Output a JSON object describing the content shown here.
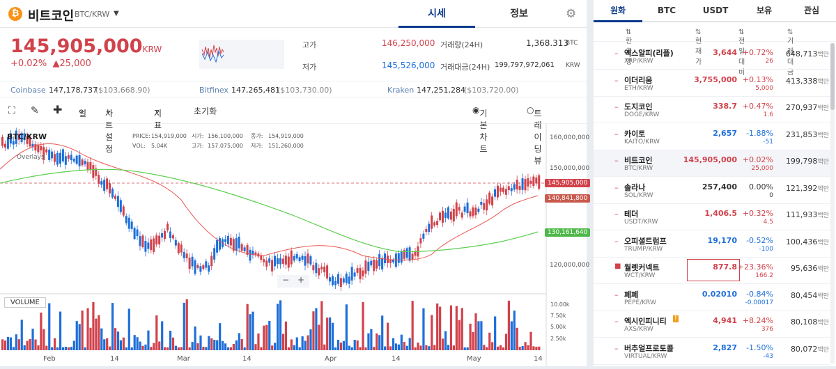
{
  "header": {
    "coin_name": "비트코인",
    "coin_symbol": "BTC/KRW",
    "tabs": [
      "시세",
      "정보"
    ]
  },
  "price": {
    "value": "145,905,000",
    "unit": "KRW",
    "change_pct": "+0.02%",
    "change_amt": "▲25,000"
  },
  "stats": {
    "high_label": "고가",
    "high": "146,250,000",
    "low_label": "저가",
    "low": "145,526,000",
    "vol_label": "거래량(24H)",
    "vol": "1,368.313",
    "vol_unit": "BTC",
    "amt_label": "거래대금(24H)",
    "amt": "199,797,972,061",
    "amt_unit": "KRW"
  },
  "exchanges": [
    {
      "name": "Coinbase",
      "price": "147,178,737",
      "usd": "($103,668.90)"
    },
    {
      "name": "Bitfinex",
      "price": "147,265,481",
      "usd": "($103,730.00)"
    },
    {
      "name": "Kraken",
      "price": "147,251,284",
      "usd": "($103,720.00)"
    }
  ],
  "toolbar": {
    "period": "일",
    "chart_settings": "차트설정",
    "indicator": "지표",
    "reset": "초기화",
    "basic_chart": "기본차트",
    "tradingview": "트레이딩뷰"
  },
  "chart": {
    "pair": "BTC/KRW",
    "overlays": "Overlays",
    "info": {
      "price_l": "PRICE:",
      "price": "154,919,000",
      "vol_l": "VOL:",
      "vol": "5.04K",
      "open_l": "시가:",
      "open": "156,100,000",
      "high_l": "고가:",
      "high": "157,075,000",
      "close_l": "종가:",
      "close": "154,919,000",
      "low_l": "저가:",
      "low": "151,260,000"
    },
    "y_ticks": [
      "160,000,000",
      "150,000,000",
      "120,000,000"
    ],
    "x_ticks": [
      "Feb",
      "14",
      "Mar",
      "14",
      "Apr",
      "14",
      "May",
      "14"
    ],
    "price_tags": [
      "145,905,000",
      "140,841,800",
      "130,161,640"
    ],
    "volume_label": "VOLUME",
    "vol_ticks": [
      "10.00k",
      "7.50k",
      "5.00k",
      "2.50k"
    ]
  },
  "chart_data": {
    "type": "candlestick",
    "ma_short_color": "#e8564f",
    "ma_long_color": "#5ccf4f",
    "up_color": "#d1424b",
    "down_color": "#1e6fd9"
  },
  "market": {
    "tabs": [
      "원화",
      "BTC",
      "USDT",
      "보유",
      "관심"
    ],
    "columns": [
      "한글명",
      "현재가",
      "전일대비",
      "거래대금"
    ],
    "rows": [
      {
        "name": "엑스알피(리플)",
        "sym": "XRP/KRW",
        "price": "3,644",
        "pct": "+0.72%",
        "amt": "26",
        "vol": "648,713",
        "unit": "백만",
        "dir": "up"
      },
      {
        "name": "이더리움",
        "sym": "ETH/KRW",
        "price": "3,755,000",
        "pct": "+0.13%",
        "amt": "5,000",
        "vol": "413,338",
        "unit": "백만",
        "dir": "up"
      },
      {
        "name": "도지코인",
        "sym": "DOGE/KRW",
        "price": "338.7",
        "pct": "+0.47%",
        "amt": "1.6",
        "vol": "270,937",
        "unit": "백만",
        "dir": "up"
      },
      {
        "name": "카이토",
        "sym": "KAITO/KRW",
        "price": "2,657",
        "pct": "-1.88%",
        "amt": "-51",
        "vol": "231,853",
        "unit": "백만",
        "dir": "dn"
      },
      {
        "name": "비트코인",
        "sym": "BTC/KRW",
        "price": "145,905,000",
        "pct": "+0.02%",
        "amt": "25,000",
        "vol": "199,798",
        "unit": "백만",
        "dir": "up"
      },
      {
        "name": "솔라나",
        "sym": "SOL/KRW",
        "price": "257,400",
        "pct": "0.00%",
        "amt": "0",
        "vol": "121,392",
        "unit": "백만",
        "dir": "nc"
      },
      {
        "name": "테더",
        "sym": "USDT/KRW",
        "price": "1,406.5",
        "pct": "+0.32%",
        "amt": "4.5",
        "vol": "111,933",
        "unit": "백만",
        "dir": "up"
      },
      {
        "name": "오피셜트럼프",
        "sym": "TRUMP/KRW",
        "price": "19,170",
        "pct": "-0.52%",
        "amt": "-100",
        "vol": "100,436",
        "unit": "백만",
        "dir": "dn"
      },
      {
        "name": "월렛커넥트",
        "sym": "WCT/KRW",
        "price": "877.8",
        "pct": "+23.36%",
        "amt": "166.2",
        "vol": "95,636",
        "unit": "백만",
        "dir": "up"
      },
      {
        "name": "페페",
        "sym": "PEPE/KRW",
        "price": "0.02010",
        "pct": "-0.84%",
        "amt": "-0.00017",
        "vol": "80,454",
        "unit": "백만",
        "dir": "dn"
      },
      {
        "name": "엑시인피니티",
        "sym": "AXS/KRW",
        "price": "4,941",
        "pct": "+8.24%",
        "amt": "376",
        "vol": "80,108",
        "unit": "백만",
        "dir": "up"
      },
      {
        "name": "버추얼프로토콜",
        "sym": "VIRTUAL/KRW",
        "price": "2,827",
        "pct": "-1.50%",
        "amt": "-43",
        "vol": "80,072",
        "unit": "백만",
        "dir": "dn"
      }
    ]
  }
}
